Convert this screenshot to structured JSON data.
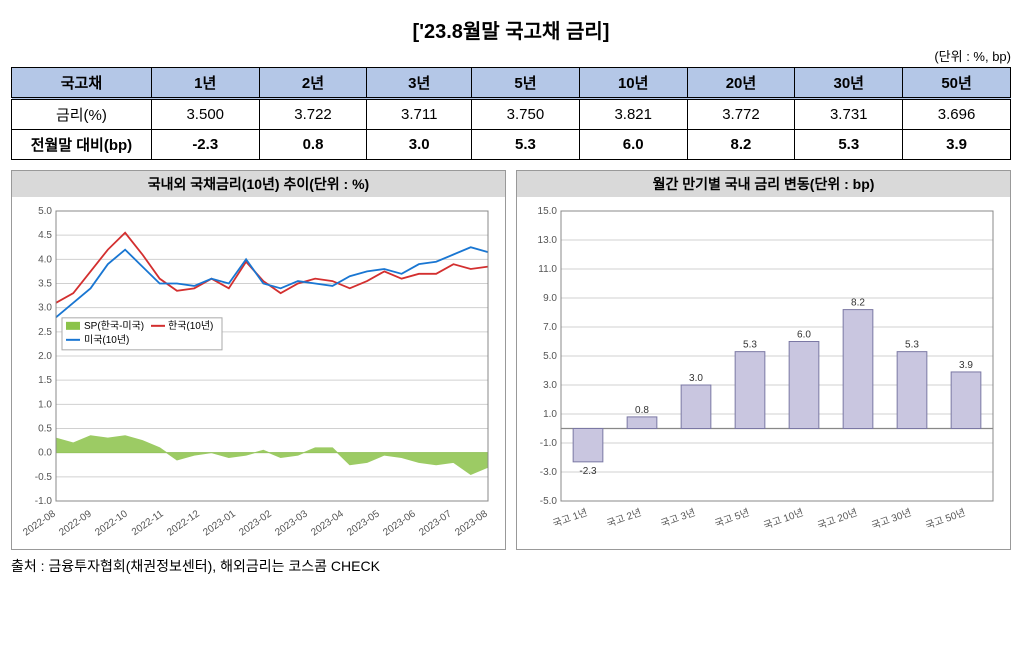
{
  "title": "['23.8월말 국고채 금리]",
  "unit": "(단위 : %, bp)",
  "table": {
    "header_label": "국고채",
    "periods": [
      "1년",
      "2년",
      "3년",
      "5년",
      "10년",
      "20년",
      "30년",
      "50년"
    ],
    "row_rate_label": "금리(%)",
    "rates": [
      "3.500",
      "3.722",
      "3.711",
      "3.750",
      "3.821",
      "3.772",
      "3.731",
      "3.696"
    ],
    "row_delta_label": "전월말 대비(bp)",
    "deltas": [
      "-2.3",
      "0.8",
      "3.0",
      "5.3",
      "6.0",
      "8.2",
      "5.3",
      "3.9"
    ]
  },
  "chart_left": {
    "title": "국내외 국채금리(10년) 추이(단위 : %)",
    "ylim": [
      -1.0,
      5.0
    ],
    "yticks": [
      -1.0,
      -0.5,
      0.0,
      0.5,
      1.0,
      1.5,
      2.0,
      2.5,
      3.0,
      3.5,
      4.0,
      4.5,
      5.0
    ],
    "xticks": [
      "2022-08",
      "2022-09",
      "2022-10",
      "2022-11",
      "2022-12",
      "2023-01",
      "2023-02",
      "2023-03",
      "2023-04",
      "2023-05",
      "2023-06",
      "2023-07",
      "2023-08"
    ],
    "legend": {
      "sp": "SP(한국-미국)",
      "kr": "한국(10년)",
      "us": "미국(10년)"
    },
    "colors": {
      "sp": "#8bc34a",
      "kr": "#d32f2f",
      "us": "#1976d2",
      "grid": "#d0d0d0",
      "bg": "#ffffff"
    },
    "series_kr": [
      3.1,
      3.3,
      3.75,
      4.2,
      4.55,
      4.1,
      3.6,
      3.35,
      3.4,
      3.6,
      3.4,
      3.95,
      3.55,
      3.3,
      3.5,
      3.6,
      3.55,
      3.4,
      3.55,
      3.75,
      3.6,
      3.7,
      3.7,
      3.9,
      3.8,
      3.85
    ],
    "series_us": [
      2.8,
      3.1,
      3.4,
      3.9,
      4.2,
      3.85,
      3.5,
      3.5,
      3.45,
      3.6,
      3.5,
      4.0,
      3.5,
      3.4,
      3.55,
      3.5,
      3.45,
      3.65,
      3.75,
      3.8,
      3.7,
      3.9,
      3.95,
      4.1,
      4.25,
      4.15
    ],
    "series_sp": [
      0.3,
      0.2,
      0.35,
      0.3,
      0.35,
      0.25,
      0.1,
      -0.15,
      -0.05,
      0.0,
      -0.1,
      -0.05,
      0.05,
      -0.1,
      -0.05,
      0.1,
      0.1,
      -0.25,
      -0.2,
      -0.05,
      -0.1,
      -0.2,
      -0.25,
      -0.2,
      -0.45,
      -0.3
    ]
  },
  "chart_right": {
    "title": "월간 만기별 국내 금리 변동(단위 : bp)",
    "ylim": [
      -5.0,
      15.0
    ],
    "yticks": [
      -5.0,
      -3.0,
      -1.0,
      1.0,
      3.0,
      5.0,
      7.0,
      9.0,
      11.0,
      13.0,
      15.0
    ],
    "categories": [
      "국고 1년",
      "국고 2년",
      "국고 3년",
      "국고 5년",
      "국고 10년",
      "국고 20년",
      "국고 30년",
      "국고 50년"
    ],
    "values": [
      -2.3,
      0.8,
      3.0,
      5.3,
      6.0,
      8.2,
      5.3,
      3.9
    ],
    "labels": [
      "-2.3",
      "0.8",
      "3.0",
      "5.3",
      "6.0",
      "8.2",
      "5.3",
      "3.9"
    ],
    "bar_color": "#c9c6e0",
    "bar_border": "#7b78a4",
    "grid": "#d0d0d0",
    "zero_line": "#888"
  },
  "footer": "출처 : 금융투자협회(채권정보센터), 해외금리는 코스콤 CHECK"
}
